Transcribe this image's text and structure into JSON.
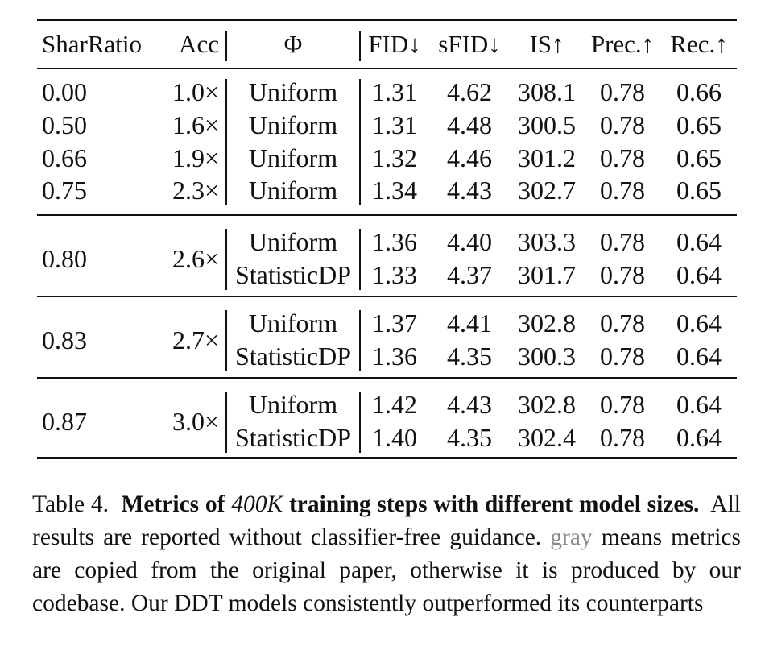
{
  "table": {
    "headers": [
      "SharRatio",
      "Acc",
      "Φ",
      "FID↓",
      "sFID↓",
      "IS↑",
      "Prec.↑",
      "Rec.↑"
    ],
    "groups": [
      {
        "rows": [
          {
            "shar_ratio": "0.00",
            "acc": "1.0×",
            "phi": "Uniform",
            "fid": "1.31",
            "sfid": "4.62",
            "is": "308.1",
            "prec": "0.78",
            "rec": "0.66"
          },
          {
            "shar_ratio": "0.50",
            "acc": "1.6×",
            "phi": "Uniform",
            "fid": "1.31",
            "sfid": "4.48",
            "is": "300.5",
            "prec": "0.78",
            "rec": "0.65"
          },
          {
            "shar_ratio": "0.66",
            "acc": "1.9×",
            "phi": "Uniform",
            "fid": "1.32",
            "sfid": "4.46",
            "is": "301.2",
            "prec": "0.78",
            "rec": "0.65"
          },
          {
            "shar_ratio": "0.75",
            "acc": "2.3×",
            "phi": "Uniform",
            "fid": "1.34",
            "sfid": "4.43",
            "is": "302.7",
            "prec": "0.78",
            "rec": "0.65"
          }
        ]
      },
      {
        "shar_ratio": "0.80",
        "acc": "2.6×",
        "rows": [
          {
            "phi": "Uniform",
            "fid": "1.36",
            "sfid": "4.40",
            "is": "303.3",
            "prec": "0.78",
            "rec": "0.64"
          },
          {
            "phi": "StatisticDP",
            "fid": "1.33",
            "sfid": "4.37",
            "is": "301.7",
            "prec": "0.78",
            "rec": "0.64"
          }
        ]
      },
      {
        "shar_ratio": "0.83",
        "acc": "2.7×",
        "rows": [
          {
            "phi": "Uniform",
            "fid": "1.37",
            "sfid": "4.41",
            "is": "302.8",
            "prec": "0.78",
            "rec": "0.64"
          },
          {
            "phi": "StatisticDP",
            "fid": "1.36",
            "sfid": "4.35",
            "is": "300.3",
            "prec": "0.78",
            "rec": "0.64"
          }
        ]
      },
      {
        "shar_ratio": "0.87",
        "acc": "3.0×",
        "rows": [
          {
            "phi": "Uniform",
            "fid": "1.42",
            "sfid": "4.43",
            "is": "302.8",
            "prec": "0.78",
            "rec": "0.64"
          },
          {
            "phi": "StatisticDP",
            "fid": "1.40",
            "sfid": "4.35",
            "is": "302.4",
            "prec": "0.78",
            "rec": "0.64"
          }
        ]
      }
    ]
  },
  "caption": {
    "label": "Table 4.",
    "bold_pre": "Metrics of",
    "math": "400K",
    "bold_post": "training steps with different model sizes.",
    "text1": "All results are reported without classifier-free guidance.",
    "gray_word": "gray",
    "text2": "means metrics are copied from the original paper, otherwise it is produced by our codebase. Our DDT models consistently outperformed its counterparts"
  }
}
